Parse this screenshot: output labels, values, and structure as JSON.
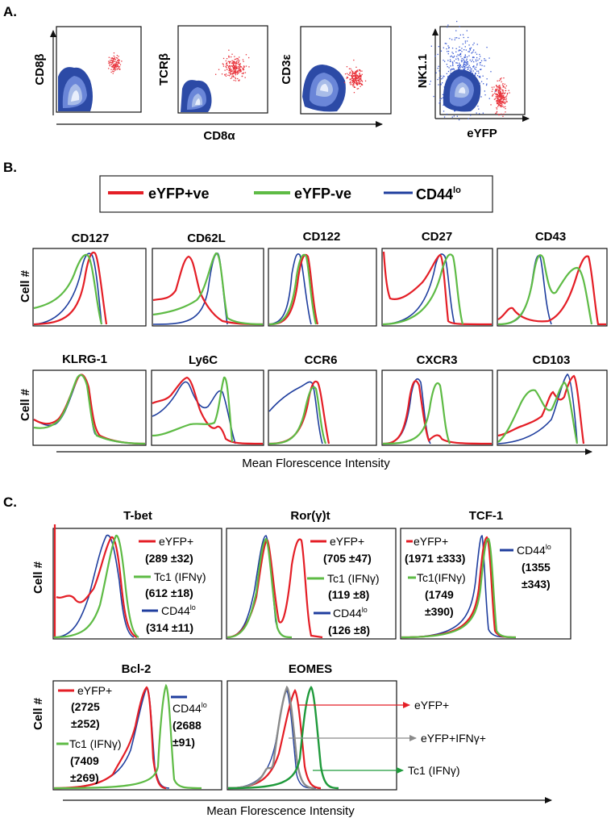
{
  "figure": {
    "panel_labels": {
      "a": "A.",
      "b": "B.",
      "c": "C."
    },
    "colors": {
      "red": "#e41e26",
      "green": "#5ebb45",
      "darkgreen": "#1f9a3b",
      "blue": "#1f3e9e",
      "gray": "#8a8a8a",
      "contour": "#2c4aa6",
      "dots_red": "#e8323b",
      "dots_blue": "#3a5bd4"
    }
  },
  "panel_a": {
    "x_label_cd8a": "CD8α",
    "x_label_eyfp": "eYFP",
    "plots": [
      {
        "ylabel": "CD8β"
      },
      {
        "ylabel": "TCRβ"
      },
      {
        "ylabel": "CD3ε"
      },
      {
        "ylabel": "NK1.1"
      }
    ]
  },
  "panel_b": {
    "legend": {
      "eyfp_pos": "eYFP+ve",
      "eyfp_neg": "eYFP-ve",
      "cd44_base": "CD44",
      "cd44_sup": "lo"
    },
    "y_label": "Cell #",
    "x_label": "Mean Florescence Intensity",
    "histograms": [
      {
        "title": "CD127"
      },
      {
        "title": "CD62L"
      },
      {
        "title": "CD122"
      },
      {
        "title": "CD27"
      },
      {
        "title": "CD43"
      },
      {
        "title": "KLRG-1"
      },
      {
        "title": "Ly6C"
      },
      {
        "title": "CCR6"
      },
      {
        "title": "CXCR3"
      },
      {
        "title": "CD103"
      }
    ]
  },
  "panel_c": {
    "y_label": "Cell #",
    "x_label": "Mean Florescence Intensity",
    "tbet": {
      "title": "T-bet",
      "eyfp": "eYFP+",
      "eyfp_val": "(289 ±32)",
      "tc1": "Tc1 (IFNγ)",
      "tc1_val": "(612 ±18)",
      "cd44": "CD44",
      "cd44_sup": "lo",
      "cd44_val": "(314 ±11)"
    },
    "ror": {
      "title": "Ror(γ)t",
      "eyfp": "eYFP+",
      "eyfp_val": "(705 ±47)",
      "tc1": "Tc1 (IFNγ)",
      "tc1_val": "(119 ±8)",
      "cd44": "CD44",
      "cd44_sup": "lo",
      "cd44_val": "(126 ±8)"
    },
    "tcf1": {
      "title": "TCF-1",
      "eyfp": "eYFP+",
      "eyfp_val": "(1971 ±333)",
      "tc1": "Tc1(IFNγ)",
      "tc1_val1": "(1749",
      "tc1_val2": "±390)",
      "cd44": "CD44",
      "cd44_sup": "lo",
      "cd44_val1": "(1355",
      "cd44_val2": "±343)"
    },
    "bcl2": {
      "title": "Bcl-2",
      "eyfp": "eYFP+",
      "eyfp_val1": "(2725",
      "eyfp_val2": "±252)",
      "tc1": "Tc1 (IFNγ)",
      "tc1_val1": "(7409",
      "tc1_val2": "±269)",
      "cd44": "CD44",
      "cd44_sup": "lo",
      "cd44_val1": "(2688",
      "cd44_val2": "±91)"
    },
    "eomes": {
      "title": "EOMES",
      "arrow1": "eYFP+",
      "arrow2": "eYFP+IFNγ+",
      "arrow3": "Tc1 (IFNγ)"
    }
  }
}
